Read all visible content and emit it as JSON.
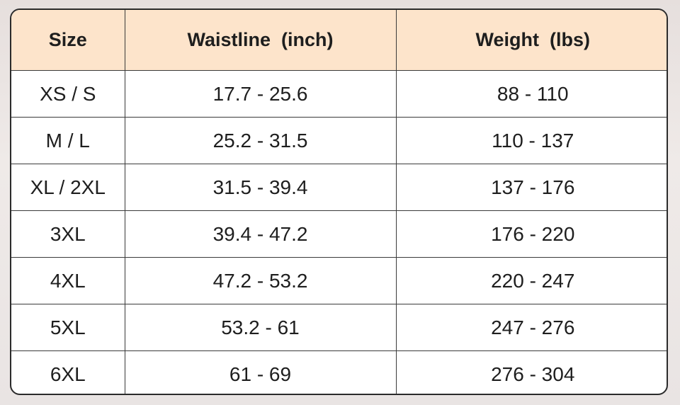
{
  "table": {
    "header": [
      "Size",
      "Waistline  (inch)",
      "Weight  (lbs)"
    ],
    "rows": [
      [
        "XS / S",
        "17.7 - 25.6",
        "88 - 110"
      ],
      [
        "M / L",
        "25.2 - 31.5",
        "110 - 137"
      ],
      [
        "XL / 2XL",
        "31.5 - 39.4",
        "137 - 176"
      ],
      [
        "3XL",
        "39.4 - 47.2",
        "176 - 220"
      ],
      [
        "4XL",
        "47.2 - 53.2",
        "220 - 247"
      ],
      [
        "5XL",
        "53.2 - 61",
        "247 - 276"
      ],
      [
        "6XL",
        "61 - 69",
        "276 - 304"
      ]
    ]
  }
}
